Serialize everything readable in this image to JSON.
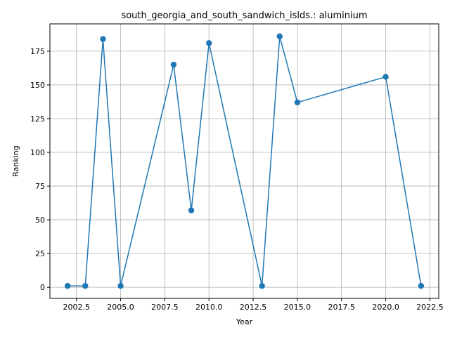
{
  "chart_data": {
    "type": "line",
    "title": "south_georgia_and_south_sandwich_islds.: aluminium",
    "xlabel": "Year",
    "ylabel": "Ranking",
    "x": [
      2002,
      2003,
      2004,
      2005,
      2008,
      2009,
      2010,
      2013,
      2014,
      2015,
      2020,
      2022
    ],
    "series": [
      {
        "values": [
          1,
          1,
          184,
          1,
          165,
          57,
          181,
          1,
          186,
          137,
          156,
          1
        ],
        "color": "#1f77b4"
      }
    ],
    "xlim": [
      2001,
      2023
    ],
    "ylim": [
      -8.25,
      195.25
    ],
    "xticks": [
      2002.5,
      2005.0,
      2007.5,
      2010.0,
      2012.5,
      2015.0,
      2017.5,
      2020.0,
      2022.5
    ],
    "xtick_labels": [
      "2002.5",
      "2005.0",
      "2007.5",
      "2010.0",
      "2012.5",
      "2015.0",
      "2017.5",
      "2020.0",
      "2022.5"
    ],
    "yticks": [
      0,
      25,
      50,
      75,
      100,
      125,
      150,
      175
    ],
    "ytick_labels": [
      "0",
      "25",
      "50",
      "75",
      "100",
      "125",
      "150",
      "175"
    ],
    "grid": true,
    "marker": "circle"
  }
}
